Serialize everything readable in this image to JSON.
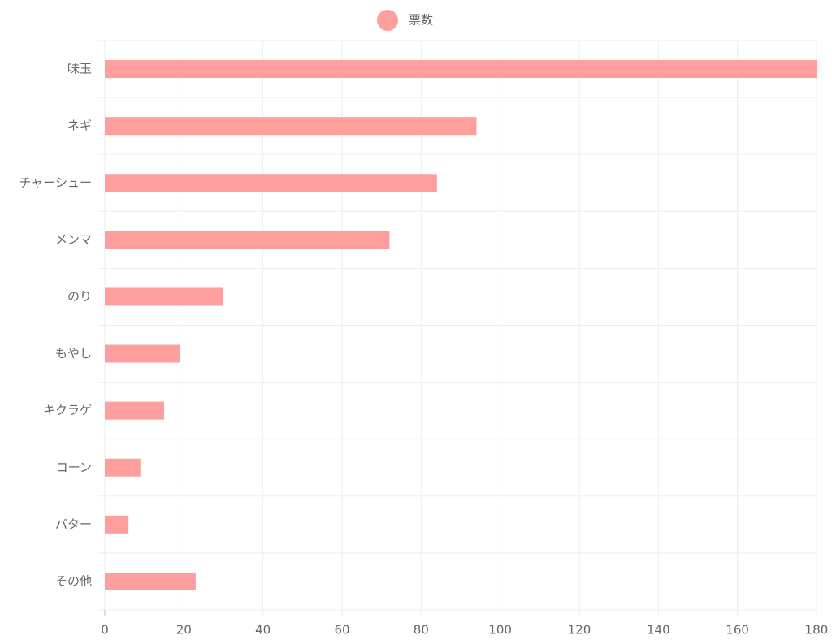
{
  "chart_data": {
    "type": "bar",
    "orientation": "horizontal",
    "categories": [
      "味玉",
      "ネギ",
      "チャーシュー",
      "メンマ",
      "のり",
      "もやし",
      "キクラゲ",
      "コーン",
      "バター",
      "その他"
    ],
    "series": [
      {
        "name": "票数",
        "color": "#ff9f9d",
        "values": [
          180,
          94,
          84,
          72,
          30,
          19,
          15,
          9,
          6,
          23
        ]
      }
    ],
    "xlim": [
      0,
      180
    ],
    "xticks": [
      0,
      20,
      40,
      60,
      80,
      100,
      120,
      140,
      160,
      180
    ],
    "grid": true,
    "legend_position": "top"
  }
}
